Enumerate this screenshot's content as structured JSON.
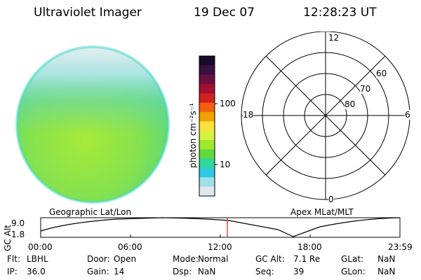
{
  "header": {
    "title": "Ultraviolet Imager",
    "date": "19 Dec 07",
    "time": "12:28:23 UT"
  },
  "colorbar": {
    "unit_label": "photon cm⁻²s⁻¹",
    "ticks": [
      "100",
      "10"
    ],
    "colors_top_to_bottom": [
      "#1a0a2a",
      "#3a1040",
      "#6a1040",
      "#a01030",
      "#d02020",
      "#f06010",
      "#f0a000",
      "#f8e040",
      "#d8f040",
      "#a0e830",
      "#60d840",
      "#30d8a0",
      "#30c8e0",
      "#a0e0e8",
      "#e0e8ee"
    ]
  },
  "image_panel": {
    "fill_color": "#8fe64a",
    "edge_color": "#40d8c8"
  },
  "polar_grid": {
    "mlt_labels": [
      "12",
      "6",
      "18",
      "0"
    ],
    "lat_labels": [
      "60",
      "70",
      "80"
    ]
  },
  "altitude_plot": {
    "left_label": "Geographic Lat/Lon",
    "right_label": "Apex MLat/MLT",
    "y_axis_label": "GC Alt",
    "y_ticks": [
      "9.0",
      "1.8"
    ],
    "x_ticks": [
      "00:00",
      "06:00",
      "12:00",
      "18:00",
      "23:59"
    ],
    "current_time_marker": "12:28",
    "marker_color": "#e02020"
  },
  "status": {
    "row1": [
      {
        "label": "Flt:",
        "value": "LBHL"
      },
      {
        "label": "Door:",
        "value": "Open"
      },
      {
        "label": "Mode:",
        "value": "Normal"
      },
      {
        "label": "GC Alt:",
        "value": "7.1 Re"
      },
      {
        "label": "GLat:",
        "value": "NaN"
      }
    ],
    "row2": [
      {
        "label": "IP:",
        "value": "36.0"
      },
      {
        "label": "Gain:",
        "value": "14"
      },
      {
        "label": "Dsp:",
        "value": "NaN"
      },
      {
        "label": "Seq:",
        "value": "39"
      },
      {
        "label": "GLon:",
        "value": "NaN"
      }
    ]
  }
}
